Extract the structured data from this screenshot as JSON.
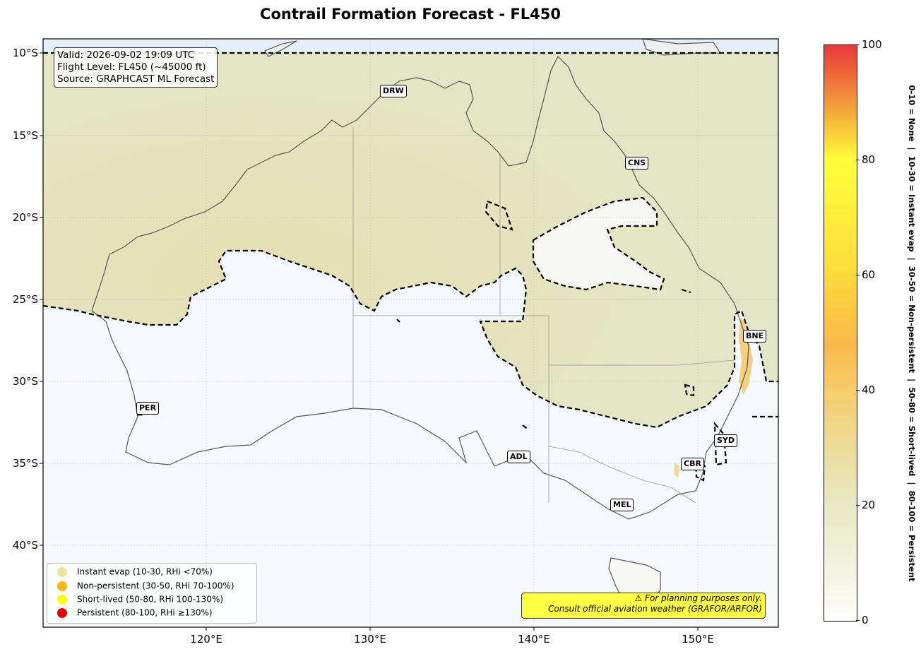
{
  "title": "Contrail Formation Forecast - FL450",
  "axes": {
    "lat_ticks": [
      "10°S",
      "15°S",
      "20°S",
      "25°S",
      "30°S",
      "35°S",
      "40°S"
    ],
    "lon_ticks": [
      "120°E",
      "130°E",
      "140°E",
      "150°E"
    ]
  },
  "info": {
    "valid": "Valid: 2026-09-02 19:09 UTC",
    "flight_level": "Flight Level: FL450 (~45000 ft)",
    "source": "Source: GRAPHCAST ML Forecast"
  },
  "cities": [
    {
      "code": "DRW",
      "lon": 130.8,
      "lat": -12.5
    },
    {
      "code": "CNS",
      "lon": 145.8,
      "lat": -16.9
    },
    {
      "code": "BNE",
      "lon": 153.0,
      "lat": -27.5
    },
    {
      "code": "PER",
      "lon": 115.9,
      "lat": -32.0
    },
    {
      "code": "SYD",
      "lon": 151.2,
      "lat": -33.9
    },
    {
      "code": "ADL",
      "lon": 138.6,
      "lat": -34.9
    },
    {
      "code": "CBR",
      "lon": 149.1,
      "lat": -35.3
    },
    {
      "code": "MEL",
      "lon": 144.9,
      "lat": -37.8
    }
  ],
  "legend": [
    {
      "label": "Instant evap (10-30, RHi <70%)",
      "color": "#efe29a"
    },
    {
      "label": "Non-persistent (30-50, RHi 70-100%)",
      "color": "#fbb412"
    },
    {
      "label": "Short-lived (50-80, RHi 100-130%)",
      "color": "#ffff0a"
    },
    {
      "label": "Persistent (80-100, RHi ≥130%)",
      "color": "#e60000"
    }
  ],
  "disclaimer": {
    "line1": "⚠ For planning purposes only.",
    "line2": "Consult official aviation weather (GRAFOR/ARFOR)"
  },
  "colorbar": {
    "ticks": [
      "0",
      "20",
      "40",
      "60",
      "80",
      "100"
    ],
    "label": "0-10 = None  |  10-30 = Instant evap  |  30-50 = Non-persistent  |  50-80 = Short-lived  |  80-100 = Persistent"
  }
}
